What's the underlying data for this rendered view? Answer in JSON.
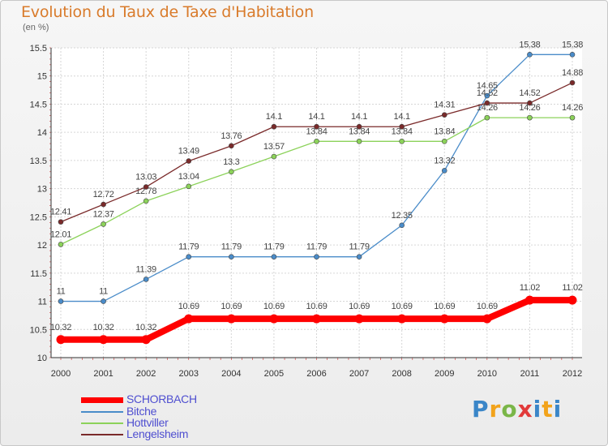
{
  "title": "Evolution du Taux de Taxe d'Habitation",
  "unit_label": "(en %)",
  "brand": "Proxiti",
  "chart_data": {
    "type": "line",
    "title": "Evolution du Taux de Taxe d'Habitation",
    "subtitle": "(en %)",
    "x": [
      "2000",
      "2001",
      "2002",
      "2003",
      "2004",
      "2005",
      "2006",
      "2007",
      "2008",
      "2009",
      "2010",
      "2011",
      "2012"
    ],
    "ylim": [
      10,
      15.5
    ],
    "yticks": [
      "10",
      "10.5",
      "11",
      "11.5",
      "12",
      "12.5",
      "13",
      "13.5",
      "14",
      "14.5",
      "15",
      "15.5"
    ],
    "grid": true,
    "legend_position": "bottom-left",
    "series": [
      {
        "name": "Bitche",
        "color": "#4a8cc9",
        "values": [
          11,
          11,
          11.39,
          11.79,
          11.79,
          11.79,
          11.79,
          11.79,
          12.35,
          13.32,
          14.65,
          15.38,
          15.38
        ],
        "labels": [
          "11",
          "11",
          "11.39",
          "11.79",
          "11.79",
          "11.79",
          "11.79",
          "11.79",
          "12.35",
          "13.32",
          "14.65",
          "15.38",
          "15.38"
        ]
      },
      {
        "name": "Hottviller",
        "color": "#8cd25a",
        "values": [
          12.01,
          12.37,
          12.78,
          13.04,
          13.3,
          13.57,
          13.84,
          13.84,
          13.84,
          13.84,
          14.26,
          14.26,
          14.26
        ],
        "labels": [
          "12.01",
          "12.37",
          "12.78",
          "13.04",
          "13.3",
          "13.57",
          "13.84",
          "13.84",
          "13.84",
          "13.84",
          "14.26",
          "14.26",
          "14.26"
        ]
      },
      {
        "name": "Lengelsheim",
        "color": "#7a2a2a",
        "values": [
          12.41,
          12.72,
          13.03,
          13.49,
          13.76,
          14.1,
          14.1,
          14.1,
          14.1,
          14.31,
          14.52,
          14.52,
          14.88
        ],
        "labels": [
          "12.41",
          "12.72",
          "13.03",
          "13.49",
          "13.76",
          "14.1",
          "14.1",
          "14.1",
          "14.1",
          "14.31",
          "14.52",
          "14.52",
          "14.88"
        ]
      },
      {
        "name": "SCHORBACH",
        "color": "#ff0000",
        "values": [
          10.32,
          10.32,
          10.32,
          10.69,
          10.69,
          10.69,
          10.69,
          10.69,
          10.69,
          10.69,
          10.69,
          11.02,
          11.02
        ],
        "labels": [
          "10.32",
          "10.32",
          "10.32",
          "10.69",
          "10.69",
          "10.69",
          "10.69",
          "10.69",
          "10.69",
          "10.69",
          "10.69",
          "11.02",
          "11.02"
        ]
      }
    ],
    "legend": [
      {
        "name": "SCHORBACH",
        "color": "#ff0000"
      },
      {
        "name": "Bitche",
        "color": "#4a8cc9"
      },
      {
        "name": "Hottviller",
        "color": "#8cd25a"
      },
      {
        "name": "Lengelsheim",
        "color": "#7a2a2a"
      }
    ]
  }
}
